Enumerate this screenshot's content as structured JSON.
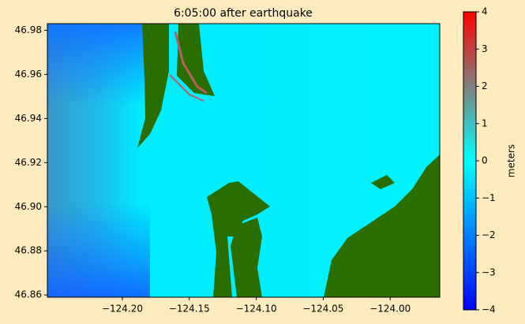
{
  "chart_data": {
    "type": "image",
    "title": "6:05:00 after earthquake",
    "xlim": [
      -124.256,
      -123.963
    ],
    "ylim": [
      46.859,
      46.983
    ],
    "xticks": [
      {
        "value": -124.2,
        "label": "−124.20"
      },
      {
        "value": -124.15,
        "label": "−124.15"
      },
      {
        "value": -124.1,
        "label": "−124.10"
      },
      {
        "value": -124.05,
        "label": "−124.05"
      },
      {
        "value": -124.0,
        "label": "−124.00"
      }
    ],
    "yticks": [
      46.98,
      46.96,
      46.94,
      46.92,
      {
        "value": 46.9,
        "label": "46.90"
      },
      46.88,
      46.86
    ],
    "colorbar": {
      "label": "meters",
      "lim": [
        -4,
        4
      ],
      "ticks": [
        {
          "value": -4,
          "label": "−4"
        },
        {
          "value": -3,
          "label": "−3"
        },
        {
          "value": -2,
          "label": "−2"
        },
        {
          "value": -1,
          "label": "−1"
        },
        0,
        1,
        2,
        3,
        4
      ],
      "colors": [
        "#0000ff",
        "#0040ff",
        "#0080ff",
        "#00c0ff",
        "#00ffff",
        "#40c0c0",
        "#808080",
        "#c04040",
        "#ff0000"
      ]
    },
    "land_color": "#2b6e00"
  }
}
